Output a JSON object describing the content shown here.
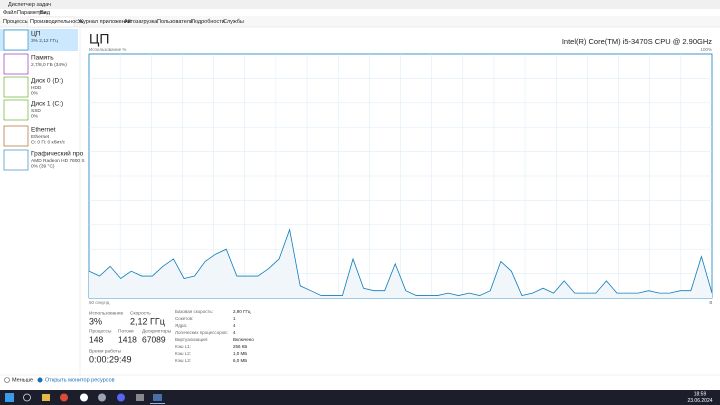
{
  "window": {
    "title": "Диспетчер задач"
  },
  "menu": [
    "Файл",
    "Параметры",
    "Вид"
  ],
  "tabs": [
    "Процессы",
    "Производительность",
    "Журнал приложений",
    "Автозагрузка",
    "Пользователи",
    "Подробности",
    "Службы"
  ],
  "sidebar": [
    {
      "name": "ЦП",
      "lines": [
        "3% 2,12 ГГц"
      ]
    },
    {
      "name": "Память",
      "lines": [
        "2,7/8,0 ГБ (34%)"
      ]
    },
    {
      "name": "Диск 0 (D:)",
      "lines": [
        "HDD",
        "0%"
      ]
    },
    {
      "name": "Диск 1 (C:)",
      "lines": [
        "SSD",
        "0%"
      ]
    },
    {
      "name": "Ethernet",
      "lines": [
        "Ethernet",
        "О: 0 П: 0 кбит/с"
      ]
    },
    {
      "name": "Графический про",
      "lines": [
        "AMD Radeon HD 7800 S",
        "0% (39 °C)"
      ]
    }
  ],
  "panel": {
    "title": "ЦП",
    "cpu_model": "Intel(R) Core(TM) i5-3470S CPU @ 2.90GHz",
    "graph": {
      "ylabel": "Использование %",
      "ylim": [
        0,
        100
      ],
      "yticks": [
        0,
        {
          "value": 100,
          "label": "100%"
        }
      ],
      "time_span": "60 секунд",
      "time_end": "0",
      "values": [
        11,
        9,
        13,
        8,
        11,
        9,
        9,
        13,
        16,
        8,
        9,
        15,
        18,
        20,
        9,
        9,
        9,
        12,
        16,
        28,
        5,
        3,
        1,
        1,
        1,
        16,
        4,
        3,
        3,
        14,
        3,
        1,
        1,
        1,
        2,
        1,
        2,
        1,
        3,
        15,
        11,
        1,
        2,
        4,
        2,
        7,
        2,
        2,
        2,
        7,
        2,
        2,
        2,
        3,
        2,
        2,
        3,
        3,
        17,
        2
      ]
    },
    "stats": [
      {
        "label": "Использование",
        "value": "3%"
      },
      {
        "label": "Скорость",
        "value": "2,12 ГГц"
      },
      {
        "label": "Процессы",
        "value": "148"
      },
      {
        "label": "Потоки",
        "value": "1418"
      },
      {
        "label": "Дескрипторы",
        "value": "67089"
      },
      {
        "label": "Время работы",
        "value": "0:00:29:49"
      }
    ],
    "specs": [
      {
        "label": "Базовая скорость:",
        "value": "2,90 ГГц"
      },
      {
        "label": "Сокетов:",
        "value": "1"
      },
      {
        "label": "Ядра:",
        "value": "4"
      },
      {
        "label": "Логических процессоров:",
        "value": "4"
      },
      {
        "label": "Виртуализация:",
        "value": "Включено"
      },
      {
        "label": "Кэш L1:",
        "value": "256 КБ"
      },
      {
        "label": "Кэш L2:",
        "value": "1,0 МБ"
      },
      {
        "label": "Кэш L3:",
        "value": "6,0 МБ"
      }
    ]
  },
  "footer": {
    "less": "Меньше",
    "monitor": "Открыть монитор ресурсов"
  },
  "taskbar": {
    "time": "18:59",
    "date": "23.06.2024"
  }
}
